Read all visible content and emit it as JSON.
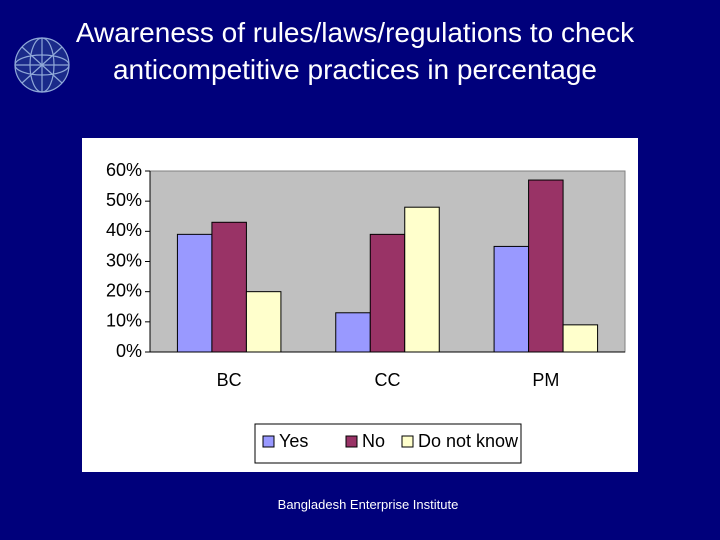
{
  "chart_data": {
    "type": "bar",
    "title": "Awareness of rules/laws/regulations to check anticompetitive practices in percentage",
    "categories": [
      "BC",
      "CC",
      "PM"
    ],
    "series": [
      {
        "name": "Yes",
        "color": "#9999ff",
        "values": [
          39,
          13,
          35
        ]
      },
      {
        "name": "No",
        "color": "#993366",
        "values": [
          43,
          39,
          57
        ]
      },
      {
        "name": "Do not know",
        "color": "#ffffcc",
        "values": [
          20,
          48,
          9
        ]
      }
    ],
    "ylim": [
      0,
      60
    ],
    "yticks": [
      {
        "value": 0,
        "label": "0%"
      },
      {
        "value": 10,
        "label": "10%"
      },
      {
        "value": 20,
        "label": "20%"
      },
      {
        "value": 30,
        "label": "30%"
      },
      {
        "value": 40,
        "label": "40%"
      },
      {
        "value": 50,
        "label": "50%"
      },
      {
        "value": 60,
        "label": "60%"
      }
    ],
    "legend": "bottom"
  },
  "footer": "Bangladesh Enterprise Institute"
}
